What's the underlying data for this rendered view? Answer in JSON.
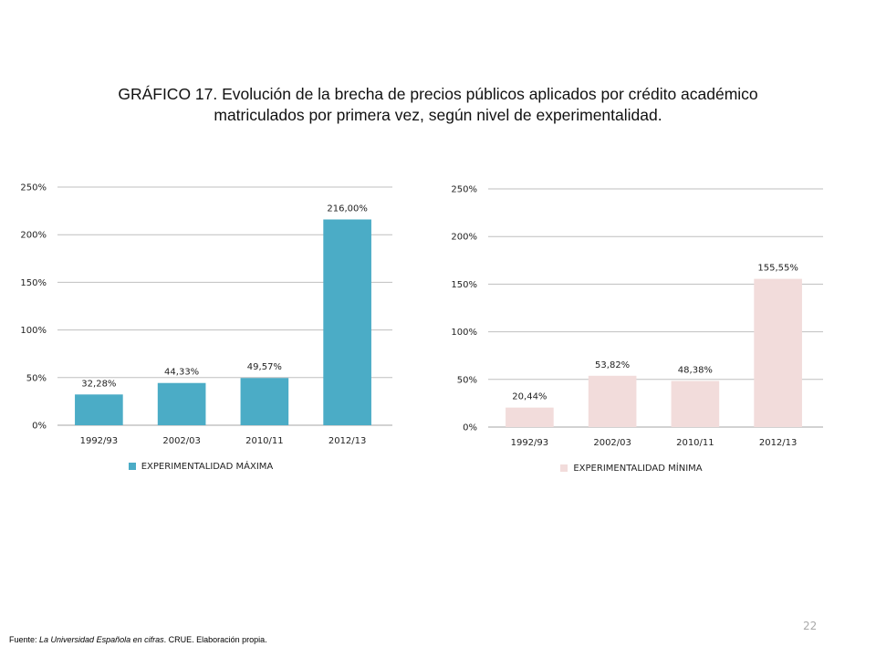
{
  "title": {
    "line1": "GRÁFICO 17. Evolución de la brecha de precios públicos aplicados por crédito académico",
    "line2": "matriculados por primera vez, según nivel de experimentalidad."
  },
  "chart_data": [
    {
      "type": "bar",
      "categories": [
        "1992/93",
        "2002/03",
        "2010/11",
        "2012/13"
      ],
      "series": [
        {
          "name": "EXPERIMENTALIDAD MÁXIMA",
          "values": [
            32.28,
            44.33,
            49.57,
            216.0
          ],
          "color": "#4BACC6"
        }
      ],
      "data_labels": [
        "32,28%",
        "44,33%",
        "49,57%",
        "216,00%"
      ],
      "y_ticks": [
        "0%",
        "50%",
        "100%",
        "150%",
        "200%",
        "250%"
      ],
      "ylim": [
        0,
        250
      ],
      "grid": true,
      "legend_position": "bottom"
    },
    {
      "type": "bar",
      "categories": [
        "1992/93",
        "2002/03",
        "2010/11",
        "2012/13"
      ],
      "series": [
        {
          "name": "EXPERIMENTALIDAD MÍNIMA",
          "values": [
            20.44,
            53.82,
            48.38,
            155.55
          ],
          "color": "#F2DCDB"
        }
      ],
      "data_labels": [
        "20,44%",
        "53,82%",
        "48,38%",
        "155,55%"
      ],
      "y_ticks": [
        "0%",
        "50%",
        "100%",
        "150%",
        "200%",
        "250%"
      ],
      "ylim": [
        0,
        250
      ],
      "grid": true,
      "legend_position": "bottom"
    }
  ],
  "footnote": {
    "prefix": "Fuente: ",
    "source": "La Universidad Española en cifras",
    "suffix": ". CRUE. Elaboración propia."
  },
  "page_number": "22"
}
